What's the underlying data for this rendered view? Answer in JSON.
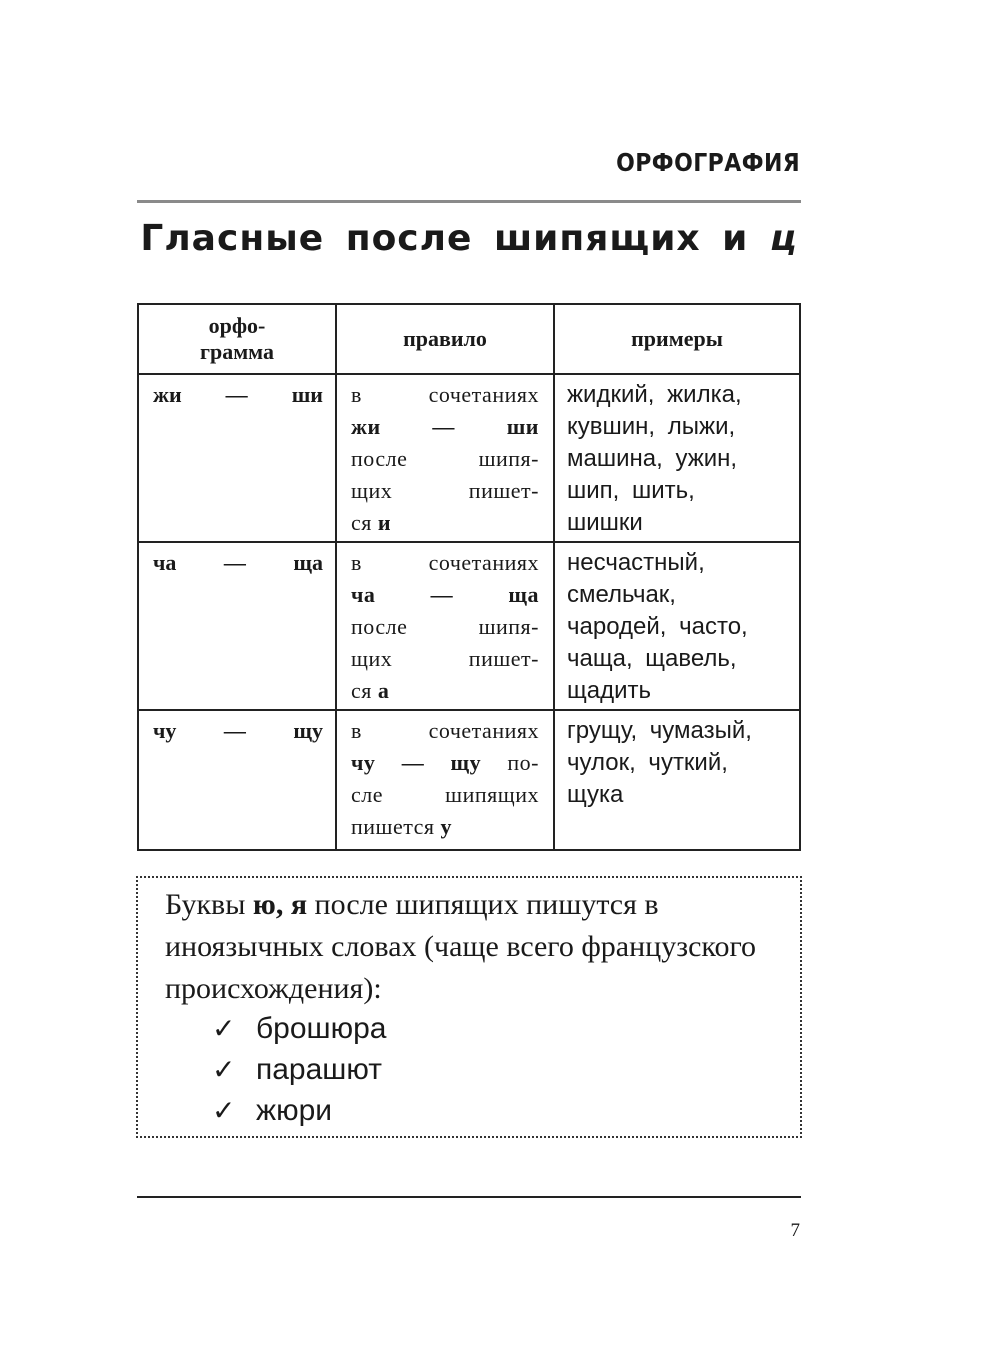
{
  "header": {
    "section": "ОРФОГРАФИЯ"
  },
  "title": {
    "main": "Гласные после шипящих и ",
    "letter": "ц"
  },
  "table": {
    "headers": {
      "orthogram_line1": "орфо-",
      "orthogram_line2": "грамма",
      "rule": "правило",
      "examples": "примеры"
    },
    "rows": [
      {
        "orthogram": "жи — ши",
        "rule_lines": [
          [
            {
              "t": "в сочетаниях",
              "b": false
            }
          ],
          [
            {
              "t": "жи — ши",
              "b": true
            }
          ],
          [
            {
              "t": "после шипя-",
              "b": false
            }
          ],
          [
            {
              "t": "щих пишет-",
              "b": false
            }
          ],
          [
            {
              "t": "ся ",
              "b": false
            },
            {
              "t": "и",
              "b": true
            }
          ]
        ],
        "examples": [
          "жидкий, жилка,",
          "кувшин, лыжи,",
          "машина, ужин,",
          "шип, шить,",
          "шишки"
        ]
      },
      {
        "orthogram": "ча — ща",
        "rule_lines": [
          [
            {
              "t": "в сочетаниях",
              "b": false
            }
          ],
          [
            {
              "t": "ча — ща",
              "b": true
            }
          ],
          [
            {
              "t": "после шипя-",
              "b": false
            }
          ],
          [
            {
              "t": "щих пишет-",
              "b": false
            }
          ],
          [
            {
              "t": "ся ",
              "b": false
            },
            {
              "t": "а",
              "b": true
            }
          ]
        ],
        "examples": [
          "несчастный,",
          "смельчак,",
          "чародей, часто,",
          "чаща, щавель,",
          "щадить"
        ]
      },
      {
        "orthogram": "чу — щу",
        "rule_lines": [
          [
            {
              "t": "в сочетаниях",
              "b": false
            }
          ],
          [
            {
              "t": "чу — щу",
              "b": true
            },
            {
              "t": " по-",
              "b": false
            }
          ],
          [
            {
              "t": "сле шипящих",
              "b": false
            }
          ],
          [
            {
              "t": "пишется ",
              "b": false
            },
            {
              "t": "у",
              "b": true
            }
          ]
        ],
        "examples": [
          "грущу, чумазый,",
          "чулок, чуткий,",
          "щука"
        ]
      }
    ]
  },
  "note": {
    "text_before": "Буквы ",
    "letters": "ю, я",
    "text_after": " после шипящих пишутся в иноязычных словах (чаще всего французского происхождения):",
    "check_icon": "✓",
    "items": [
      "брошюра",
      "парашют",
      "жюри"
    ]
  },
  "footer": {
    "page_number": "7"
  }
}
